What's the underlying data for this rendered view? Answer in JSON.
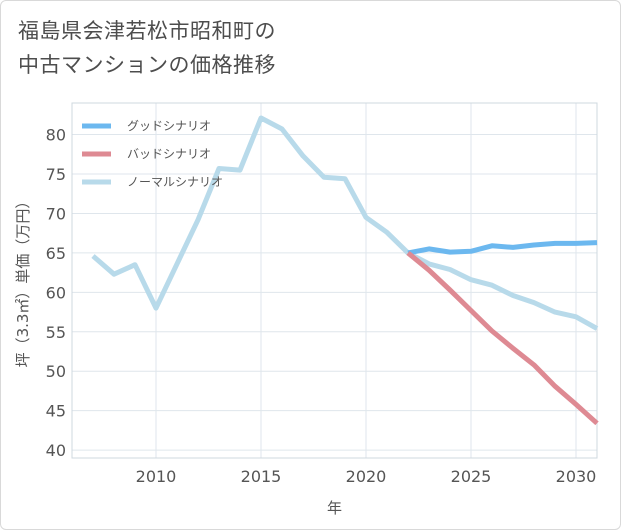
{
  "title": {
    "line1": "福島県会津若松市昭和町の",
    "line2": "中古マンションの価格推移"
  },
  "chart_data": {
    "type": "line",
    "xlabel": "年",
    "ylabel": "坪（3.3㎡）単価（万円）",
    "xlim": [
      2006,
      2031
    ],
    "ylim": [
      39,
      84
    ],
    "x_ticks": [
      2010,
      2015,
      2020,
      2025,
      2030
    ],
    "y_ticks": [
      40,
      45,
      50,
      55,
      60,
      65,
      70,
      75,
      80
    ],
    "grid": true,
    "legend_position": "top-left",
    "series": [
      {
        "name": "グッドシナリオ",
        "color": "#6cb8ef",
        "x": [
          2022,
          2023,
          2024,
          2025,
          2026,
          2027,
          2028,
          2029,
          2030,
          2031
        ],
        "values": [
          65.0,
          65.5,
          65.1,
          65.2,
          65.9,
          65.7,
          66.0,
          66.2,
          66.2,
          66.3
        ]
      },
      {
        "name": "バッドシナリオ",
        "color": "#de8a93",
        "x": [
          2022,
          2023,
          2024,
          2025,
          2026,
          2027,
          2028,
          2029,
          2030,
          2031
        ],
        "values": [
          65.0,
          62.8,
          60.3,
          57.7,
          55.1,
          52.9,
          50.8,
          48.1,
          45.8,
          43.4
        ]
      },
      {
        "name": "ノーマルシナリオ",
        "color": "#b8daea",
        "x": [
          2007,
          2008,
          2009,
          2010,
          2011,
          2012,
          2013,
          2014,
          2015,
          2016,
          2017,
          2018,
          2019,
          2020,
          2021,
          2022,
          2023,
          2024,
          2025,
          2026,
          2027,
          2028,
          2029,
          2030,
          2031
        ],
        "values": [
          64.6,
          62.3,
          63.5,
          58.0,
          63.6,
          69.2,
          75.7,
          75.5,
          82.1,
          80.7,
          77.3,
          74.6,
          74.4,
          69.5,
          67.6,
          65.0,
          63.6,
          62.9,
          61.6,
          60.9,
          59.6,
          58.7,
          57.5,
          56.9,
          55.4
        ]
      }
    ]
  }
}
